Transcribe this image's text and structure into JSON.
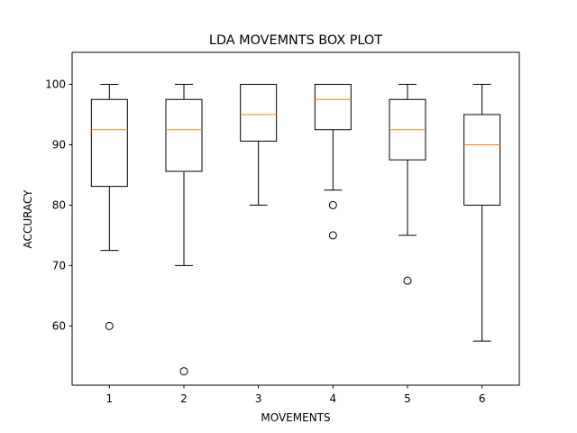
{
  "chart_data": {
    "type": "box",
    "title": "LDA MOVEMNTS BOX PLOT",
    "xlabel": "MOVEMENTS",
    "ylabel": "ACCURACY",
    "ylim": [
      50.2,
      105.3
    ],
    "yticks": [
      60,
      70,
      80,
      90,
      100
    ],
    "categories": [
      "1",
      "2",
      "3",
      "4",
      "5",
      "6"
    ],
    "boxes": [
      {
        "whisker_low": 72.5,
        "q1": 83.1,
        "median": 92.5,
        "q3": 97.5,
        "whisker_high": 100,
        "outliers": [
          60
        ]
      },
      {
        "whisker_low": 70.0,
        "q1": 85.6,
        "median": 92.5,
        "q3": 97.5,
        "whisker_high": 100,
        "outliers": [
          52.5
        ]
      },
      {
        "whisker_low": 80.0,
        "q1": 90.6,
        "median": 95.0,
        "q3": 100,
        "whisker_high": 100,
        "outliers": []
      },
      {
        "whisker_low": 82.5,
        "q1": 92.5,
        "median": 97.5,
        "q3": 100,
        "whisker_high": 100,
        "outliers": [
          80,
          75
        ]
      },
      {
        "whisker_low": 75.0,
        "q1": 87.5,
        "median": 92.5,
        "q3": 97.5,
        "whisker_high": 100,
        "outliers": [
          67.5
        ]
      },
      {
        "whisker_low": 57.5,
        "q1": 80.0,
        "median": 90.0,
        "q3": 95.0,
        "whisker_high": 100,
        "outliers": []
      }
    ],
    "grid": false,
    "colors": {
      "box": "#000000",
      "median": "#ff7f0e",
      "flier": "#000000"
    }
  }
}
